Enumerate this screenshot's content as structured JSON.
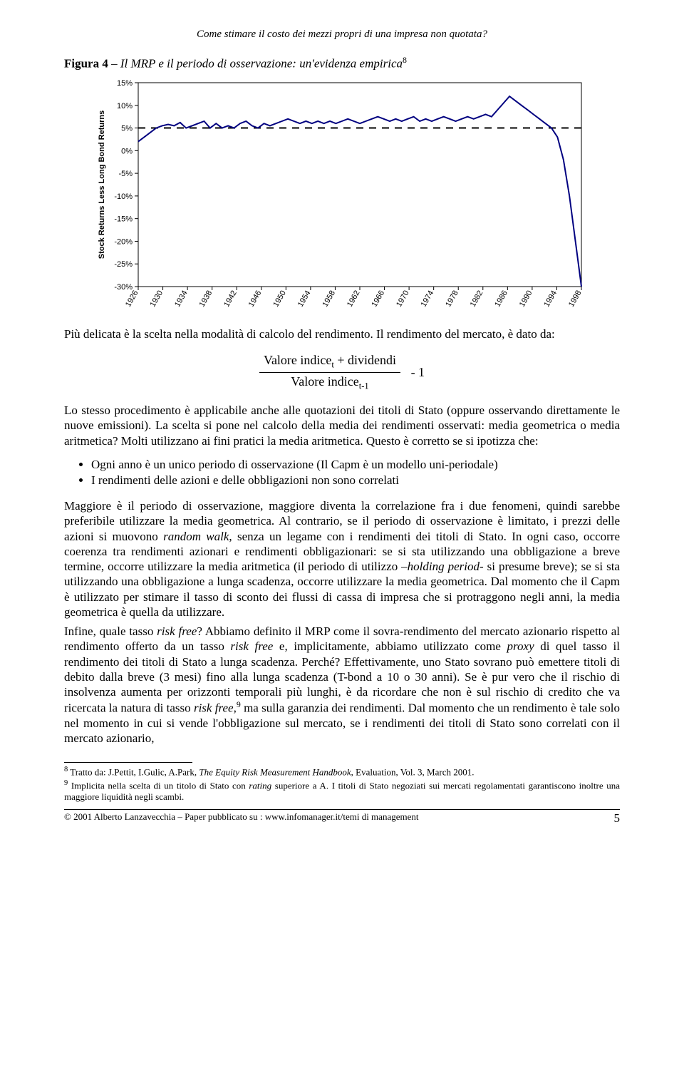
{
  "running_head": "Come stimare il costo dei mezzi propri di una impresa non quotata?",
  "figure": {
    "caption_lead": "Figura 4",
    "caption_sep": " – ",
    "caption_rest": "Il MRP e il periodo di osservazione: un'evidenza empirica",
    "caption_sup": "8"
  },
  "chart": {
    "type": "line",
    "ylabel": "Stock Returns Less Long Bond Returns",
    "yticks": [
      "15%",
      "10%",
      "5%",
      "0%",
      "-5%",
      "-10%",
      "-15%",
      "-20%",
      "-25%",
      "-30%"
    ],
    "ylim_top_pct": 15,
    "ylim_bot_pct": -30,
    "xticks": [
      "1926",
      "1930",
      "1934",
      "1938",
      "1942",
      "1946",
      "1950",
      "1954",
      "1958",
      "1962",
      "1966",
      "1970",
      "1974",
      "1978",
      "1982",
      "1986",
      "1990",
      "1994",
      "1998"
    ],
    "background_color": "#ffffff",
    "plot_bg": "#ffffff",
    "axis_color": "#000000",
    "line_color": "#000080",
    "line_width": 2,
    "dash_line_value_pct": 5,
    "series_pct": [
      2,
      3,
      4,
      5,
      5.5,
      5.8,
      5.5,
      6.2,
      5.0,
      5.5,
      6.0,
      6.5,
      5.0,
      6.0,
      5.0,
      5.5,
      5.0,
      6.0,
      6.5,
      5.5,
      5.0,
      6.0,
      5.5,
      6.0,
      6.5,
      7.0,
      6.5,
      6.0,
      6.5,
      6.0,
      6.5,
      6.0,
      6.5,
      6.0,
      6.5,
      7.0,
      6.5,
      6.0,
      6.5,
      7.0,
      7.5,
      7.0,
      6.5,
      7.0,
      6.5,
      7.0,
      7.5,
      6.5,
      7.0,
      6.5,
      7.0,
      7.5,
      7.0,
      6.5,
      7.0,
      7.5,
      7.0,
      7.5,
      8.0,
      7.5,
      9.0,
      10.5,
      12.0,
      11.0,
      10.0,
      9.0,
      8.0,
      7.0,
      6.0,
      5.0,
      3.0,
      -2,
      -10,
      -20,
      -30
    ]
  },
  "para1": "Più delicata è la scelta nella modalità di calcolo del rendimento. Il rendimento del mercato, è dato da:",
  "formula": {
    "numerator": "Valore indice",
    "num_sub": "t",
    "num_plus": " + dividendi",
    "denominator": "Valore indice",
    "den_sub": "t-1",
    "tail": "- 1"
  },
  "para2_a": "Lo stesso procedimento è applicabile anche alle quotazioni dei titoli di Stato (oppure osservando direttamente le nuove emissioni). La scelta si pone nel calcolo della media dei rendimenti osservati: media geometrica o media aritmetica? Molti utilizzano ai fini pratici la media aritmetica. Questo è corretto se si ipotizza che:",
  "bullets": [
    "Ogni anno è un unico periodo di osservazione (Il Capm è un modello uni-periodale)",
    "I rendimenti delle azioni e delle obbligazioni non sono correlati"
  ],
  "para3": "Maggiore è il periodo di osservazione, maggiore diventa la correlazione fra i due fenomeni, quindi sarebbe preferibile utilizzare la media geometrica. Al contrario, se il periodo di osservazione è limitato, i prezzi delle azioni si muovono <span class=\"italic\">random walk</span>, senza un legame con i rendimenti dei titoli di Stato. In ogni caso, occorre coerenza tra rendimenti azionari e rendimenti obbligazionari: se si sta utilizzando una obbligazione a breve termine, occorre utilizzare la media aritmetica (il periodo di utilizzo –<span class=\"italic\">holding period</span>- si presume breve); se si sta utilizzando una obbligazione a lunga scadenza, occorre utilizzare la media geometrica. Dal momento che il Capm è utilizzato per stimare il tasso di sconto dei flussi di cassa di impresa che si protraggono negli anni, la media geometrica è quella da utilizzare.",
  "para4": "Infine, quale tasso <span class=\"italic\">risk free</span>? Abbiamo definito il MRP come il sovra-rendimento del mercato azionario rispetto al rendimento offerto da un tasso <span class=\"italic\">risk free</span> e, implicitamente, abbiamo utilizzato come <span class=\"italic\">proxy</span> di quel tasso il rendimento dei titoli di Stato a lunga scadenza. Perché? Effettivamente, uno Stato sovrano può emettere titoli di debito dalla breve (3 mesi) fino alla lunga scadenza (T-bond a 10 o 30 anni). Se è pur vero che il rischio di insolvenza aumenta per orizzonti temporali più lunghi, è da ricordare che non è sul rischio di credito che va ricercata la natura di tasso <span class=\"italic\">risk free</span>,<sup class=\"fn\">9</sup> ma sulla garanzia dei rendimenti. Dal momento che un rendimento è tale solo nel momento in cui si vende l'obbligazione sul mercato, se i rendimenti dei titoli di Stato sono correlati con il mercato azionario,",
  "footnotes": [
    "Tratto da: J.Pettit, I.Gulic, A.Park, <span class=\"italic\">The Equity Risk Measurement Handbook</span>, Evaluation, Vol. 3, March 2001.",
    "Implicita nella scelta di un titolo di Stato con <span class=\"italic\">rating</span> superiore a A. I titoli di Stato negoziati sui mercati regolamentati garantiscono inoltre una maggiore liquidità negli scambi."
  ],
  "footnote_nums": [
    "8",
    "9"
  ],
  "footer_copyright": "© 2001 Alberto Lanzavecchia – Paper pubblicato su : www.infomanager.it/temi di management",
  "page_number": "5"
}
